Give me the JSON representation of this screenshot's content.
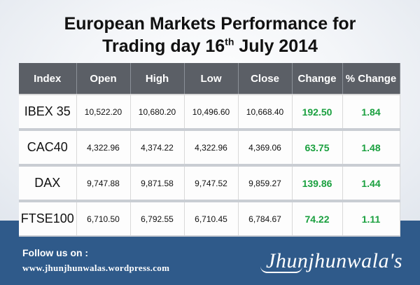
{
  "title_line1": "European Markets Performance for",
  "title_line2_a": "Trading day 16",
  "title_line2_sup": "th",
  "title_line2_b": " July 2014",
  "table": {
    "headers": [
      "Index",
      "Open",
      "High",
      "Low",
      "Close",
      "Change",
      "% Change"
    ],
    "rows": [
      {
        "index": "IBEX 35",
        "open": "10,522.20",
        "high": "10,680.20",
        "low": "10,496.60",
        "close": "10,668.40",
        "change": "192.50",
        "pct": "1.84"
      },
      {
        "index": "CAC40",
        "open": "4,322.96",
        "high": "4,374.22",
        "low": "4,322.96",
        "close": "4,369.06",
        "change": "63.75",
        "pct": "1.48"
      },
      {
        "index": "DAX",
        "open": "9,747.88",
        "high": "9,871.58",
        "low": "9,747.52",
        "close": "9,859.27",
        "change": "139.86",
        "pct": "1.44"
      },
      {
        "index": "FTSE100",
        "open": "6,710.50",
        "high": "6,792.55",
        "low": "6,710.45",
        "close": "6,784.67",
        "change": "74.22",
        "pct": "1.11"
      }
    ]
  },
  "footer": {
    "follow": "Follow us on :",
    "url": "www.jhunjhunwalas.wordpress.com",
    "brand": "Jhunjhunwala's"
  },
  "colors": {
    "header_bg": "#5b5f66",
    "positive_green": "#1aa03f",
    "footer_blue": "#2f5a8a"
  }
}
